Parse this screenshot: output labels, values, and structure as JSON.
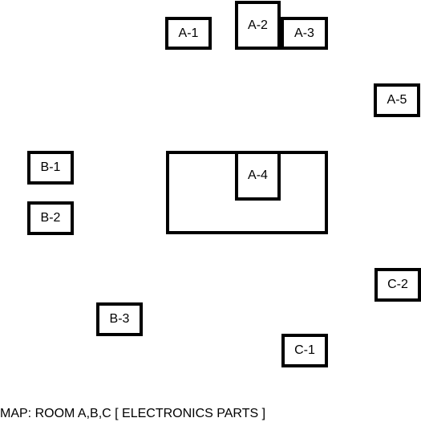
{
  "map": {
    "caption": "MAP: ROOM A,B,C [ ELECTRONICS PARTS ]",
    "rooms": {
      "A": {
        "boxes": {
          "a1": "A-1",
          "a2": "A-2",
          "a3": "A-3",
          "a4": "A-4",
          "a5": "A-5"
        }
      },
      "B": {
        "boxes": {
          "b1": "B-1",
          "b2": "B-2",
          "b3": "B-3"
        }
      },
      "C": {
        "boxes": {
          "c1": "C-1",
          "c2": "C-2"
        }
      }
    }
  }
}
